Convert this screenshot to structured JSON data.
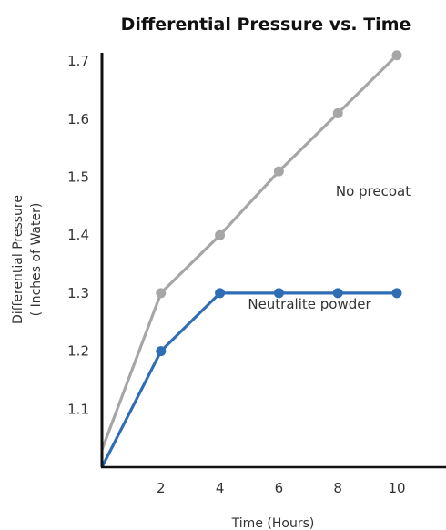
{
  "chart_data": {
    "type": "line",
    "title": "Differential Pressure vs. Time",
    "xlabel": "Time (Hours)",
    "ylabel_lines": [
      "Differential Pressure",
      "( Inches of Water)"
    ],
    "x_ticks": [
      "2",
      "4",
      "6",
      "8",
      "10"
    ],
    "y_ticks": [
      "1.1",
      "1.2",
      "1.3",
      "1.4",
      "1.5",
      "1.6",
      "1.7"
    ],
    "xlim": [
      0,
      11.5
    ],
    "ylim": [
      1.0,
      1.72
    ],
    "grid": false,
    "series": [
      {
        "name": "No precoat",
        "color": "#a6a6a6",
        "points": [
          [
            0,
            1.03
          ],
          [
            2,
            1.3
          ],
          [
            4,
            1.4
          ],
          [
            6,
            1.51
          ],
          [
            8,
            1.61
          ],
          [
            10,
            1.71
          ]
        ]
      },
      {
        "name": "Neutralite powder",
        "color": "#2f6db5",
        "points": [
          [
            0,
            1.0
          ],
          [
            2,
            1.2
          ],
          [
            4,
            1.3
          ],
          [
            6,
            1.3
          ],
          [
            8,
            1.3
          ],
          [
            10,
            1.3
          ]
        ]
      }
    ]
  }
}
